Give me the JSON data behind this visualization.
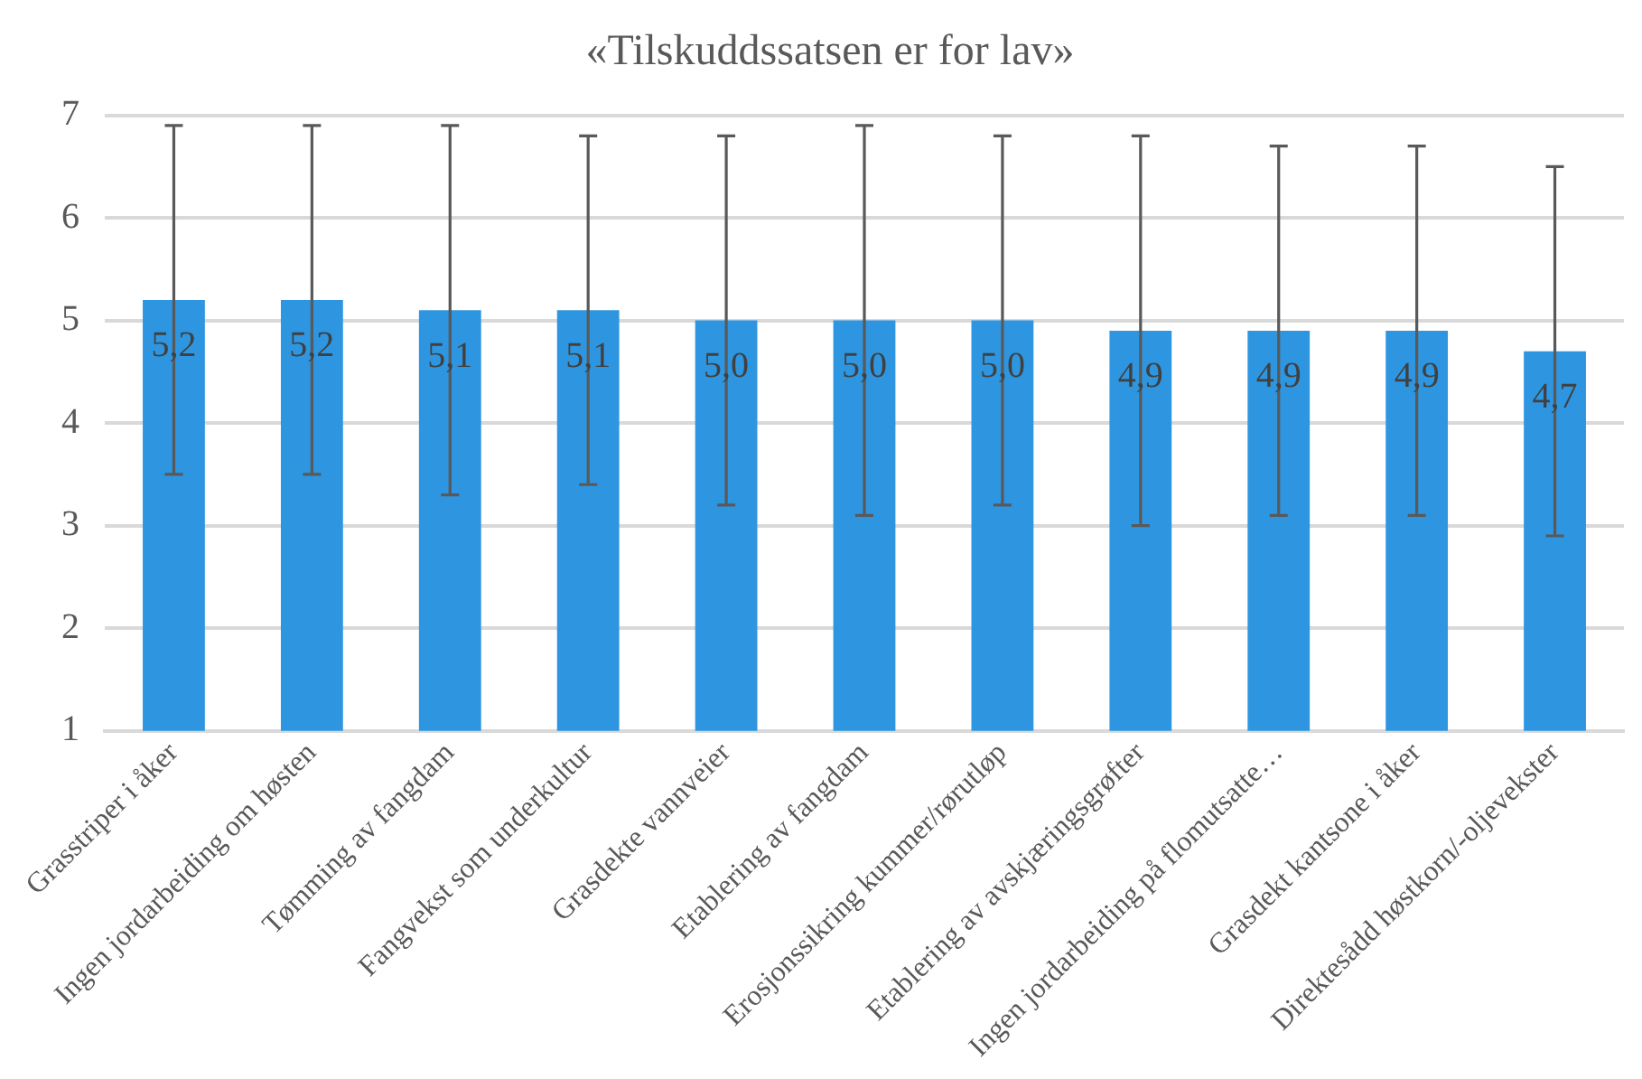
{
  "chart_data": {
    "type": "bar",
    "title": "«Tilskuddssatsen er for lav»",
    "categories": [
      "Grasstriper i åker",
      "Ingen jordarbeiding om høsten",
      "Tømming av fangdam",
      "Fangvekst som underkultur",
      "Grasdekte vannveier",
      "Etablering av fangdam",
      "Erosjonssikring kummer/rørutløp",
      "Etablering av avskjæringsgrøfter",
      "Ingen jordarbeiding på flomutsatte…",
      "Grasdekt kantsone i åker",
      "Direktesådd høstkorn/-oljevekster"
    ],
    "values": [
      5.2,
      5.2,
      5.1,
      5.1,
      5.0,
      5.0,
      5.0,
      4.9,
      4.9,
      4.9,
      4.7
    ],
    "value_labels": [
      "5,2",
      "5,2",
      "5,1",
      "5,1",
      "5,0",
      "5,0",
      "5,0",
      "4,9",
      "4,9",
      "4,9",
      "4,7"
    ],
    "errors": [
      1.7,
      1.7,
      1.8,
      1.7,
      1.8,
      1.9,
      1.8,
      1.9,
      1.8,
      1.8,
      1.8
    ],
    "color": "#2e96e0",
    "ylim": [
      1,
      7
    ],
    "yticks": [
      1,
      2,
      3,
      4,
      5,
      6,
      7
    ],
    "grid": "y",
    "legend": false
  }
}
